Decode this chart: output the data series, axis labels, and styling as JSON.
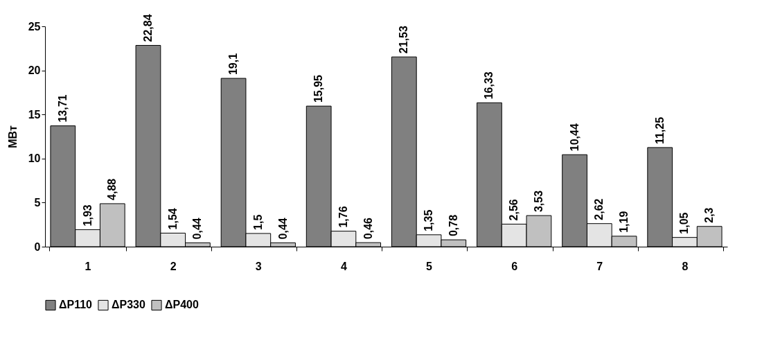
{
  "chart_data": {
    "type": "bar",
    "ylabel": "МВт",
    "categories": [
      "1",
      "2",
      "3",
      "4",
      "5",
      "6",
      "7",
      "8"
    ],
    "series": [
      {
        "name": "ΔP110",
        "color": "#808080",
        "values": [
          13.71,
          22.84,
          19.1,
          15.95,
          21.53,
          16.33,
          10.44,
          11.25
        ],
        "value_labels": [
          "13,71",
          "22,84",
          "19,1",
          "15,95",
          "21,53",
          "16,33",
          "10,44",
          "11,25"
        ]
      },
      {
        "name": "ΔP330",
        "color": "#e4e4e4",
        "values": [
          1.93,
          1.54,
          1.5,
          1.76,
          1.35,
          2.56,
          2.62,
          1.05
        ],
        "value_labels": [
          "1,93",
          "1,54",
          "1,5",
          "1,76",
          "1,35",
          "2,56",
          "2,62",
          "1,05"
        ]
      },
      {
        "name": "ΔP400",
        "color": "#c0c0c0",
        "values": [
          4.88,
          0.44,
          0.44,
          0.46,
          0.78,
          3.53,
          1.19,
          2.3
        ],
        "value_labels": [
          "4,88",
          "0,44",
          "0,44",
          "0,46",
          "0,78",
          "3,53",
          "1,19",
          "2,3"
        ]
      }
    ],
    "ylim": [
      0,
      25
    ],
    "yticks": [
      0,
      5,
      10,
      15,
      20,
      25
    ],
    "grid": false,
    "legend": "bottom"
  }
}
